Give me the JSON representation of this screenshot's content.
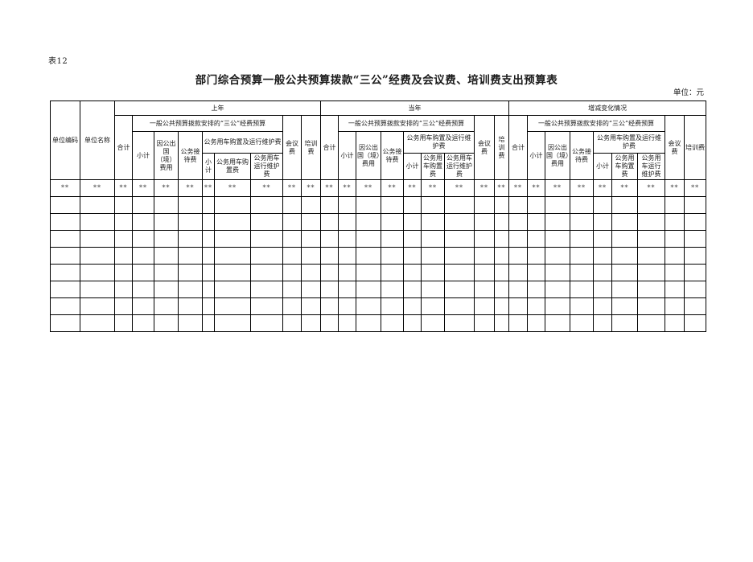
{
  "page": {
    "table_label": "表12",
    "title": "部门综合预算一般公共预算拨款“三公”经费及会议费、培训费支出预算表",
    "unit_note": "单位：元"
  },
  "table": {
    "column_count": 29,
    "empty_row_count": 8,
    "placeholder": "**",
    "columns": {
      "unit_code": "单位编码",
      "unit_name": "单位名称"
    },
    "groups": [
      {
        "label": "上年"
      },
      {
        "label": "当年"
      },
      {
        "label": "增减变化情况"
      }
    ],
    "sub_headers": {
      "total": "合计",
      "santi_budget": "一般公共预算拨款安排的“三公”经费预算",
      "subtotal": "小计",
      "abroad": "因公出国（境）费用",
      "reception": "公务接待费",
      "vehicle_total": "公务用车购置及运行维护费",
      "vehicle_subtotal": "小计",
      "vehicle_purchase": "公务用车购置费",
      "vehicle_maintenance": "公务用车运行维护费",
      "meeting": "会议费",
      "training": "培训费"
    }
  },
  "colors": {
    "background": "#ffffff",
    "border": "#000000",
    "text": "#1a1a1a"
  }
}
